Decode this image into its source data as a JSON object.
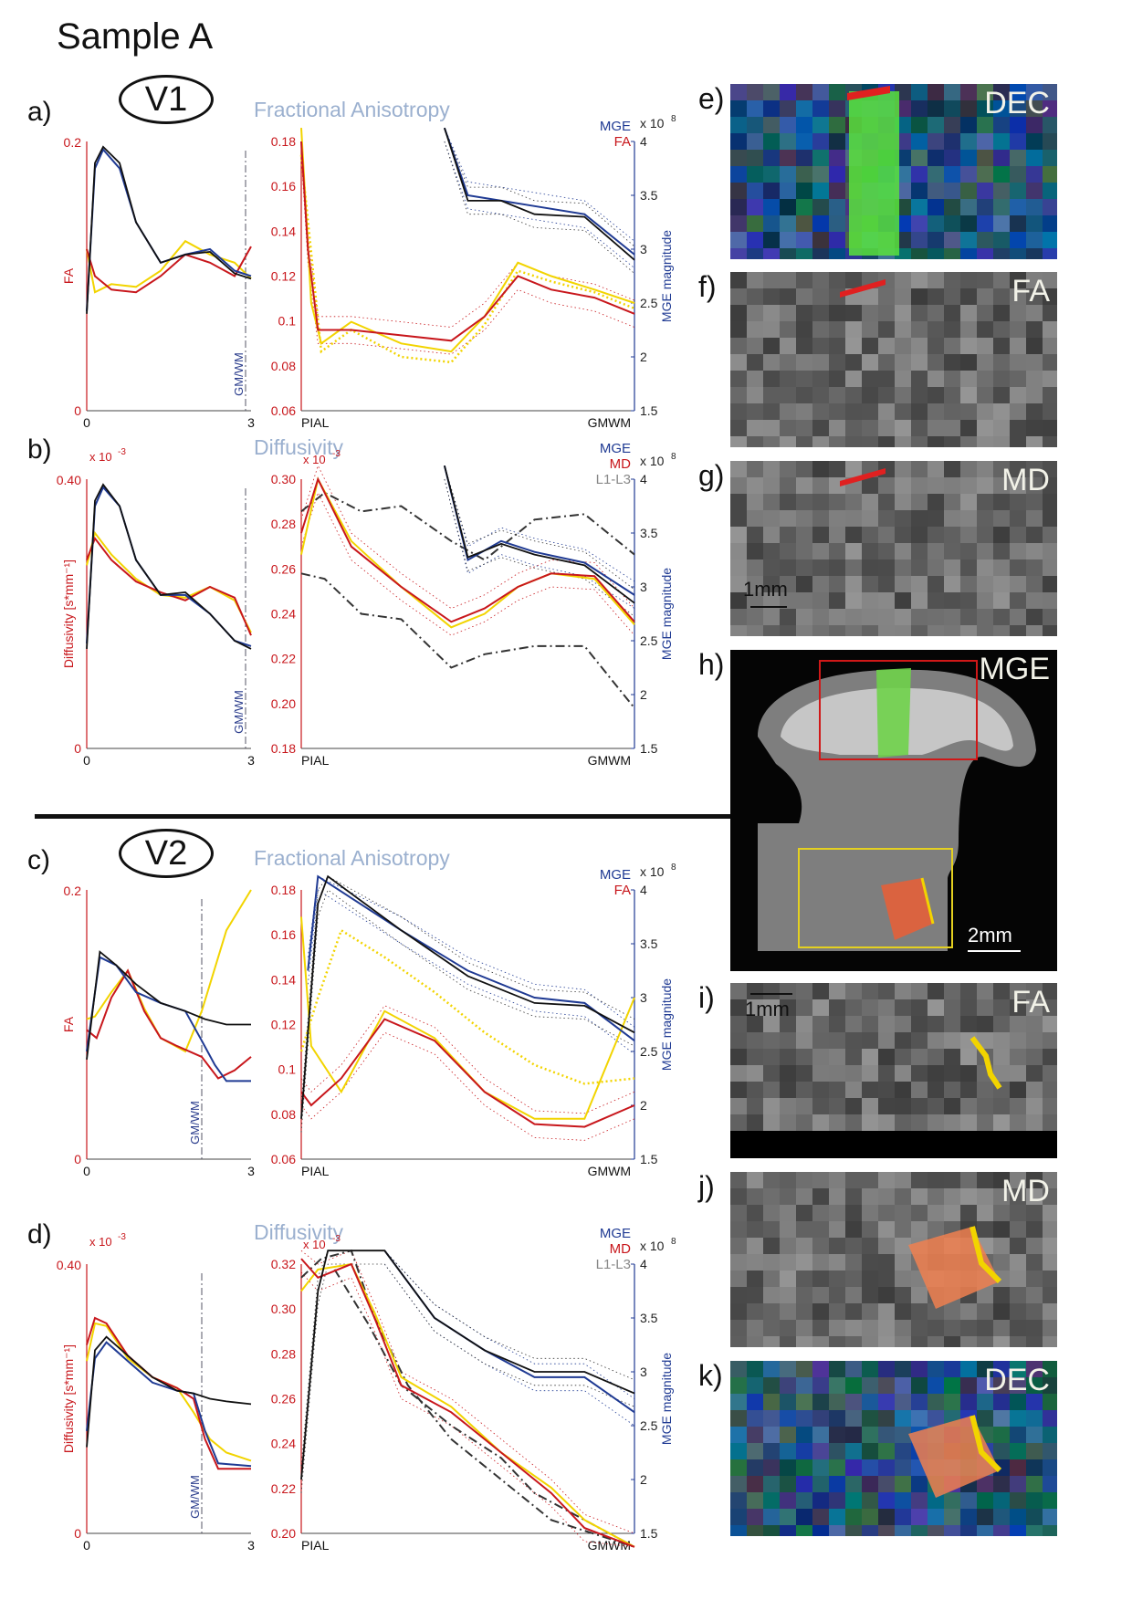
{
  "title": "Sample A",
  "colors": {
    "mge": "#1f3a93",
    "fa_md": "#c8171c",
    "alt": "#f2d400",
    "black": "#111111",
    "axis_red": "#c8171c",
    "axis_blue": "#1f3a93",
    "gray": "#888888"
  },
  "regions": [
    {
      "id": "v1",
      "label": "V1",
      "left": {
        "key": "a",
        "label": "a)"
      },
      "bottom": {
        "key": "b",
        "label": "b)"
      }
    },
    {
      "id": "v2",
      "label": "V2",
      "left": {
        "key": "c",
        "label": "c)"
      },
      "bottom": {
        "key": "d",
        "label": "d)"
      }
    }
  ],
  "chart_data": [
    {
      "key": "a",
      "label": "a)",
      "section_title": "Fractional Anisotropy",
      "type": "line",
      "left": {
        "ylabel": "FA",
        "ymax_label": "0.2",
        "ymin_label": "0",
        "x_ticks": [
          "0",
          "3"
        ],
        "gmwm_label": "GM/WM",
        "gmwm_x": 2.9
      },
      "main": {
        "y_ticks": [
          "0.18",
          "0.16",
          "0.14",
          "0.12",
          "0.1",
          "0.08",
          "0.06"
        ],
        "y2_ticks": [
          "4",
          "3.5",
          "3",
          "2.5",
          "2",
          "1.5"
        ],
        "y2_exp": "x 10",
        "y2_exp_power": "8",
        "y2_label": "MGE magnitude",
        "x_left": "PIAL",
        "x_right": "GMWM",
        "legend": [
          {
            "name": "MGE",
            "color": "#1f3a93"
          },
          {
            "name": "FA",
            "color": "#c8171c"
          }
        ],
        "ylim": [
          0.06,
          0.18
        ],
        "y2lim": [
          1.5,
          4
        ]
      }
    },
    {
      "key": "b",
      "label": "b)",
      "section_title": "Diffusivity",
      "type": "line",
      "left": {
        "ylabel": "Diffusivity [s*mm⁻¹]",
        "ymax_label": "0.40",
        "ymin_label": "0",
        "exp": "x 10",
        "exp_power": "-3",
        "x_ticks": [
          "0",
          "3"
        ],
        "gmwm_label": "GM/WM",
        "gmwm_x": 2.9
      },
      "main": {
        "y_ticks": [
          "0.30",
          "0.28",
          "0.26",
          "0.24",
          "0.22",
          "0.20",
          "0.18"
        ],
        "exp": "x 10",
        "exp_power": "-3",
        "y2_ticks": [
          "4",
          "3.5",
          "3",
          "2.5",
          "2",
          "1.5"
        ],
        "y2_exp": "x 10",
        "y2_exp_power": "8",
        "y2_label": "MGE magnitude",
        "x_left": "PIAL",
        "x_right": "GMWM",
        "legend": [
          {
            "name": "MGE",
            "color": "#1f3a93"
          },
          {
            "name": "MD",
            "color": "#c8171c"
          },
          {
            "name": "L1-L3",
            "color": "#888888"
          }
        ],
        "ylim": [
          0.18,
          0.3
        ],
        "y2lim": [
          1.5,
          4
        ]
      }
    },
    {
      "key": "c",
      "label": "c)",
      "section_title": "Fractional Anisotropy",
      "type": "line",
      "left": {
        "ylabel": "FA",
        "ymax_label": "0.2",
        "ymin_label": "0",
        "x_ticks": [
          "0",
          "3"
        ],
        "gmwm_label": "GM/WM",
        "gmwm_x": 2.1
      },
      "main": {
        "y_ticks": [
          "0.18",
          "0.16",
          "0.14",
          "0.12",
          "0.1",
          "0.08",
          "0.06"
        ],
        "y2_ticks": [
          "4",
          "3.5",
          "3",
          "2.5",
          "2",
          "1.5"
        ],
        "y2_exp": "x 10",
        "y2_exp_power": "8",
        "y2_label": "MGE magnitude",
        "x_left": "PIAL",
        "x_right": "GMWM",
        "legend": [
          {
            "name": "MGE",
            "color": "#1f3a93"
          },
          {
            "name": "FA",
            "color": "#c8171c"
          }
        ],
        "ylim": [
          0.06,
          0.18
        ],
        "y2lim": [
          1.5,
          4
        ]
      }
    },
    {
      "key": "d",
      "label": "d)",
      "section_title": "Diffusivity",
      "type": "line",
      "left": {
        "ylabel": "Diffusivity [s*mm⁻¹]",
        "ymax_label": "0.40",
        "ymin_label": "0",
        "exp": "x 10",
        "exp_power": "-3",
        "x_ticks": [
          "0",
          "3"
        ],
        "gmwm_label": "GM/WM",
        "gmwm_x": 2.1
      },
      "main": {
        "y_ticks": [
          "0.32",
          "0.30",
          "0.28",
          "0.26",
          "0.24",
          "0.22",
          "0.20"
        ],
        "exp": "x 10",
        "exp_power": "-3",
        "y2_ticks": [
          "4",
          "3.5",
          "3",
          "2.5",
          "2",
          "1.5"
        ],
        "y2_exp": "x 10",
        "y2_exp_power": "8",
        "y2_label": "MGE magnitude",
        "x_left": "PIAL",
        "x_right": "GMWM",
        "legend": [
          {
            "name": "MGE",
            "color": "#1f3a93"
          },
          {
            "name": "MD",
            "color": "#c8171c"
          },
          {
            "name": "L1-L3",
            "color": "#888888"
          }
        ],
        "ylim": [
          0.2,
          0.32
        ],
        "y2lim": [
          1.5,
          4
        ]
      }
    }
  ],
  "image_panels": [
    {
      "key": "e",
      "label": "e)",
      "tag": "DEC"
    },
    {
      "key": "f",
      "label": "f)",
      "tag": "FA"
    },
    {
      "key": "g",
      "label": "g)",
      "tag": "MD",
      "scale": "1mm"
    },
    {
      "key": "h",
      "label": "h)",
      "tag": "MGE",
      "scale": "2mm"
    },
    {
      "key": "i",
      "label": "i)",
      "tag": "FA",
      "scale": "1mm"
    },
    {
      "key": "j",
      "label": "j)",
      "tag": "MD"
    },
    {
      "key": "k",
      "label": "k)",
      "tag": "DEC"
    }
  ]
}
